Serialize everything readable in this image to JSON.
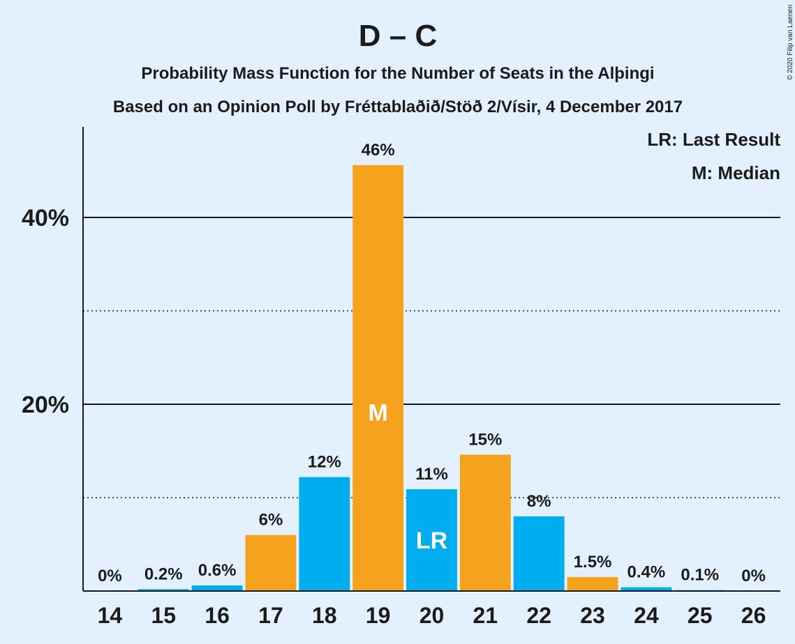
{
  "chart_data": {
    "type": "bar",
    "title": "D – C",
    "subtitle_1": "Probability Mass Function for the Number of Seats in the Alþingi",
    "subtitle_2": "Based on an Opinion Poll by Fréttablaðið/Stöð 2/Vísir, 4 December 2017",
    "copyright": "© 2020 Filip van Laenen",
    "legend": [
      "LR: Last Result",
      "M: Median"
    ],
    "categories": [
      "14",
      "15",
      "16",
      "17",
      "18",
      "19",
      "20",
      "21",
      "22",
      "23",
      "24",
      "25",
      "26"
    ],
    "values": [
      0,
      0.2,
      0.6,
      6,
      12.2,
      45.6,
      10.9,
      14.6,
      8,
      1.5,
      0.4,
      0.1,
      0
    ],
    "labels": [
      "0%",
      "0.2%",
      "0.6%",
      "6%",
      "12%",
      "46%",
      "11%",
      "15%",
      "8%",
      "1.5%",
      "0.4%",
      "0.1%",
      "0%"
    ],
    "bar_colors": [
      "#00adef",
      "#00adef",
      "#00adef",
      "#f5a21c",
      "#00adef",
      "#f5a21c",
      "#00adef",
      "#f5a21c",
      "#00adef",
      "#f5a21c",
      "#00adef",
      "#00adef",
      "#00adef"
    ],
    "in_bar_labels": [
      {
        "category": "19",
        "text": "M"
      },
      {
        "category": "20",
        "text": "LR"
      }
    ],
    "ylim": [
      0,
      50
    ],
    "yticks_major": [
      20,
      40
    ],
    "ytick_labels": [
      "20%",
      "40%"
    ],
    "yticks_minor": [
      10,
      30
    ],
    "grid": true,
    "legend_position": "top-right"
  }
}
